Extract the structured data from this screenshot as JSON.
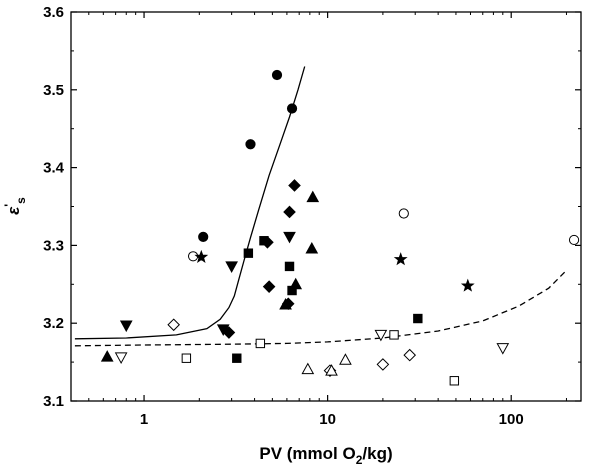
{
  "chart_data": {
    "type": "scatter",
    "title": "",
    "xlabel": {
      "main": "PV (mmol O",
      "sub": "2",
      "tail": "/kg)"
    },
    "ylabel": {
      "symbol": "ε",
      "sup": "'",
      "sub": "s"
    },
    "xscale": "log",
    "xlim": [
      0.4,
      240
    ],
    "ylim": [
      3.1,
      3.6
    ],
    "grid": false,
    "legend": "none",
    "x_tick_labels": [
      {
        "value": 1,
        "label": "1"
      },
      {
        "value": 10,
        "label": "10"
      },
      {
        "value": 100,
        "label": "100"
      }
    ],
    "y_tick_labels": [
      {
        "value": 3.1,
        "label": "3.1"
      },
      {
        "value": 3.2,
        "label": "3.2"
      },
      {
        "value": 3.3,
        "label": "3.3"
      },
      {
        "value": 3.4,
        "label": "3.4"
      },
      {
        "value": 3.5,
        "label": "3.5"
      },
      {
        "value": 3.6,
        "label": "3.6"
      }
    ],
    "series": [
      {
        "marker": "circle",
        "filled": true,
        "points": [
          [
            2.1,
            3.311
          ],
          [
            3.8,
            3.43
          ],
          [
            5.3,
            3.519
          ],
          [
            6.4,
            3.476
          ]
        ]
      },
      {
        "marker": "circle",
        "filled": false,
        "points": [
          [
            1.85,
            3.286
          ],
          [
            26,
            3.341
          ],
          [
            220,
            3.307
          ]
        ]
      },
      {
        "marker": "square",
        "filled": true,
        "points": [
          [
            3.2,
            3.155
          ],
          [
            3.7,
            3.29
          ],
          [
            4.5,
            3.306
          ],
          [
            6.2,
            3.273
          ],
          [
            6.4,
            3.242
          ],
          [
            31,
            3.206
          ]
        ]
      },
      {
        "marker": "square",
        "filled": false,
        "points": [
          [
            1.7,
            3.155
          ],
          [
            4.3,
            3.174
          ],
          [
            23,
            3.185
          ],
          [
            49,
            3.126
          ]
        ]
      },
      {
        "marker": "diamond",
        "filled": true,
        "points": [
          [
            2.9,
            3.188
          ],
          [
            4.7,
            3.304
          ],
          [
            4.8,
            3.247
          ],
          [
            6.2,
            3.343
          ],
          [
            6.6,
            3.377
          ],
          [
            6.1,
            3.225
          ]
        ]
      },
      {
        "marker": "diamond",
        "filled": false,
        "points": [
          [
            1.45,
            3.198
          ],
          [
            10.3,
            3.139
          ],
          [
            20,
            3.147
          ],
          [
            28,
            3.159
          ]
        ]
      },
      {
        "marker": "triangle-up",
        "filled": true,
        "points": [
          [
            0.63,
            3.157
          ],
          [
            5.9,
            3.224
          ],
          [
            6.7,
            3.25
          ],
          [
            8.2,
            3.296
          ],
          [
            8.3,
            3.362
          ]
        ]
      },
      {
        "marker": "triangle-up",
        "filled": false,
        "points": [
          [
            7.8,
            3.141
          ],
          [
            10.5,
            3.139
          ],
          [
            12.5,
            3.153
          ]
        ]
      },
      {
        "marker": "triangle-down",
        "filled": true,
        "points": [
          [
            0.8,
            3.197
          ],
          [
            2.7,
            3.192
          ],
          [
            3.0,
            3.273
          ],
          [
            6.2,
            3.311
          ]
        ]
      },
      {
        "marker": "triangle-down",
        "filled": false,
        "points": [
          [
            0.75,
            3.156
          ],
          [
            19.5,
            3.185
          ],
          [
            90,
            3.168
          ]
        ]
      },
      {
        "marker": "star",
        "filled": true,
        "points": [
          [
            2.05,
            3.285
          ],
          [
            25,
            3.282
          ],
          [
            58,
            3.248
          ]
        ]
      }
    ],
    "curves": [
      {
        "style": "solid",
        "points": [
          [
            0.42,
            3.18
          ],
          [
            0.8,
            3.181
          ],
          [
            1.5,
            3.185
          ],
          [
            2.2,
            3.193
          ],
          [
            2.6,
            3.205
          ],
          [
            2.9,
            3.22
          ],
          [
            3.1,
            3.235
          ],
          [
            3.3,
            3.258
          ],
          [
            3.5,
            3.28
          ],
          [
            3.8,
            3.31
          ],
          [
            4.2,
            3.345
          ],
          [
            4.8,
            3.39
          ],
          [
            5.5,
            3.43
          ],
          [
            6.2,
            3.465
          ],
          [
            6.9,
            3.5
          ],
          [
            7.5,
            3.53
          ]
        ]
      },
      {
        "style": "dashed",
        "points": [
          [
            0.42,
            3.171
          ],
          [
            1,
            3.172
          ],
          [
            3,
            3.173
          ],
          [
            6,
            3.174
          ],
          [
            10,
            3.176
          ],
          [
            20,
            3.181
          ],
          [
            40,
            3.19
          ],
          [
            70,
            3.203
          ],
          [
            110,
            3.222
          ],
          [
            160,
            3.245
          ],
          [
            200,
            3.268
          ]
        ]
      }
    ]
  }
}
